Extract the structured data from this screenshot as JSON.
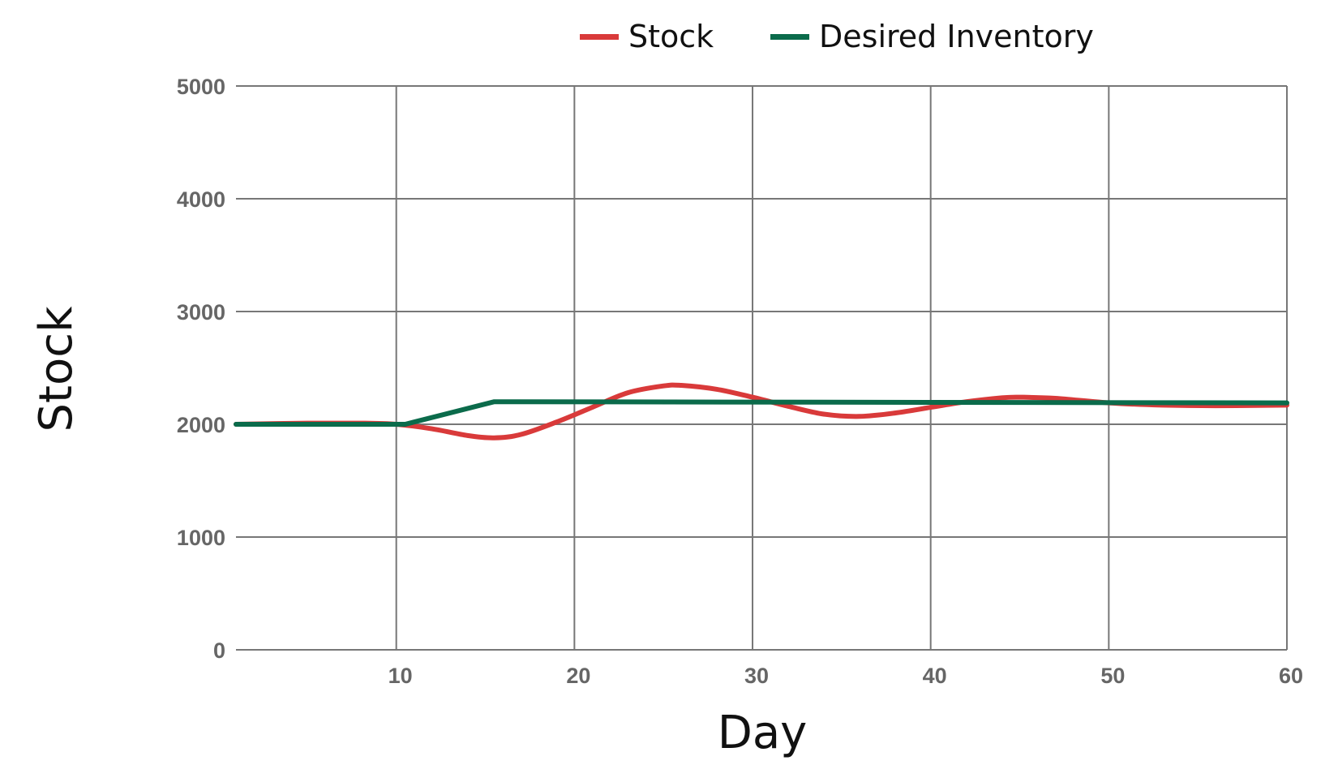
{
  "chart_data": {
    "type": "line",
    "xlabel": "Day",
    "ylabel": "Stock",
    "xlim": [
      1,
      60
    ],
    "ylim": [
      0,
      5000
    ],
    "x_ticks": [
      10,
      20,
      30,
      40,
      50,
      60
    ],
    "y_ticks": [
      0,
      1000,
      2000,
      3000,
      4000,
      5000
    ],
    "grid": true,
    "legend_position": "top",
    "series": [
      {
        "name": "Stock",
        "color": "#d93a3a",
        "x": [
          1,
          5,
          8,
          10,
          12,
          14,
          15.5,
          17,
          19,
          21,
          23,
          25,
          26,
          28,
          30,
          32,
          34,
          36,
          38,
          40,
          42,
          44,
          45,
          47,
          50,
          53,
          56,
          60
        ],
        "y": [
          2000,
          2010,
          2010,
          2000,
          1960,
          1900,
          1880,
          1910,
          2020,
          2150,
          2280,
          2340,
          2345,
          2310,
          2240,
          2160,
          2090,
          2070,
          2100,
          2150,
          2200,
          2235,
          2240,
          2230,
          2190,
          2170,
          2165,
          2170
        ]
      },
      {
        "name": "Desired Inventory",
        "color": "#0b6b4b",
        "x": [
          1,
          10.5,
          15.5,
          60
        ],
        "y": [
          2000,
          2000,
          2200,
          2190
        ]
      }
    ]
  }
}
